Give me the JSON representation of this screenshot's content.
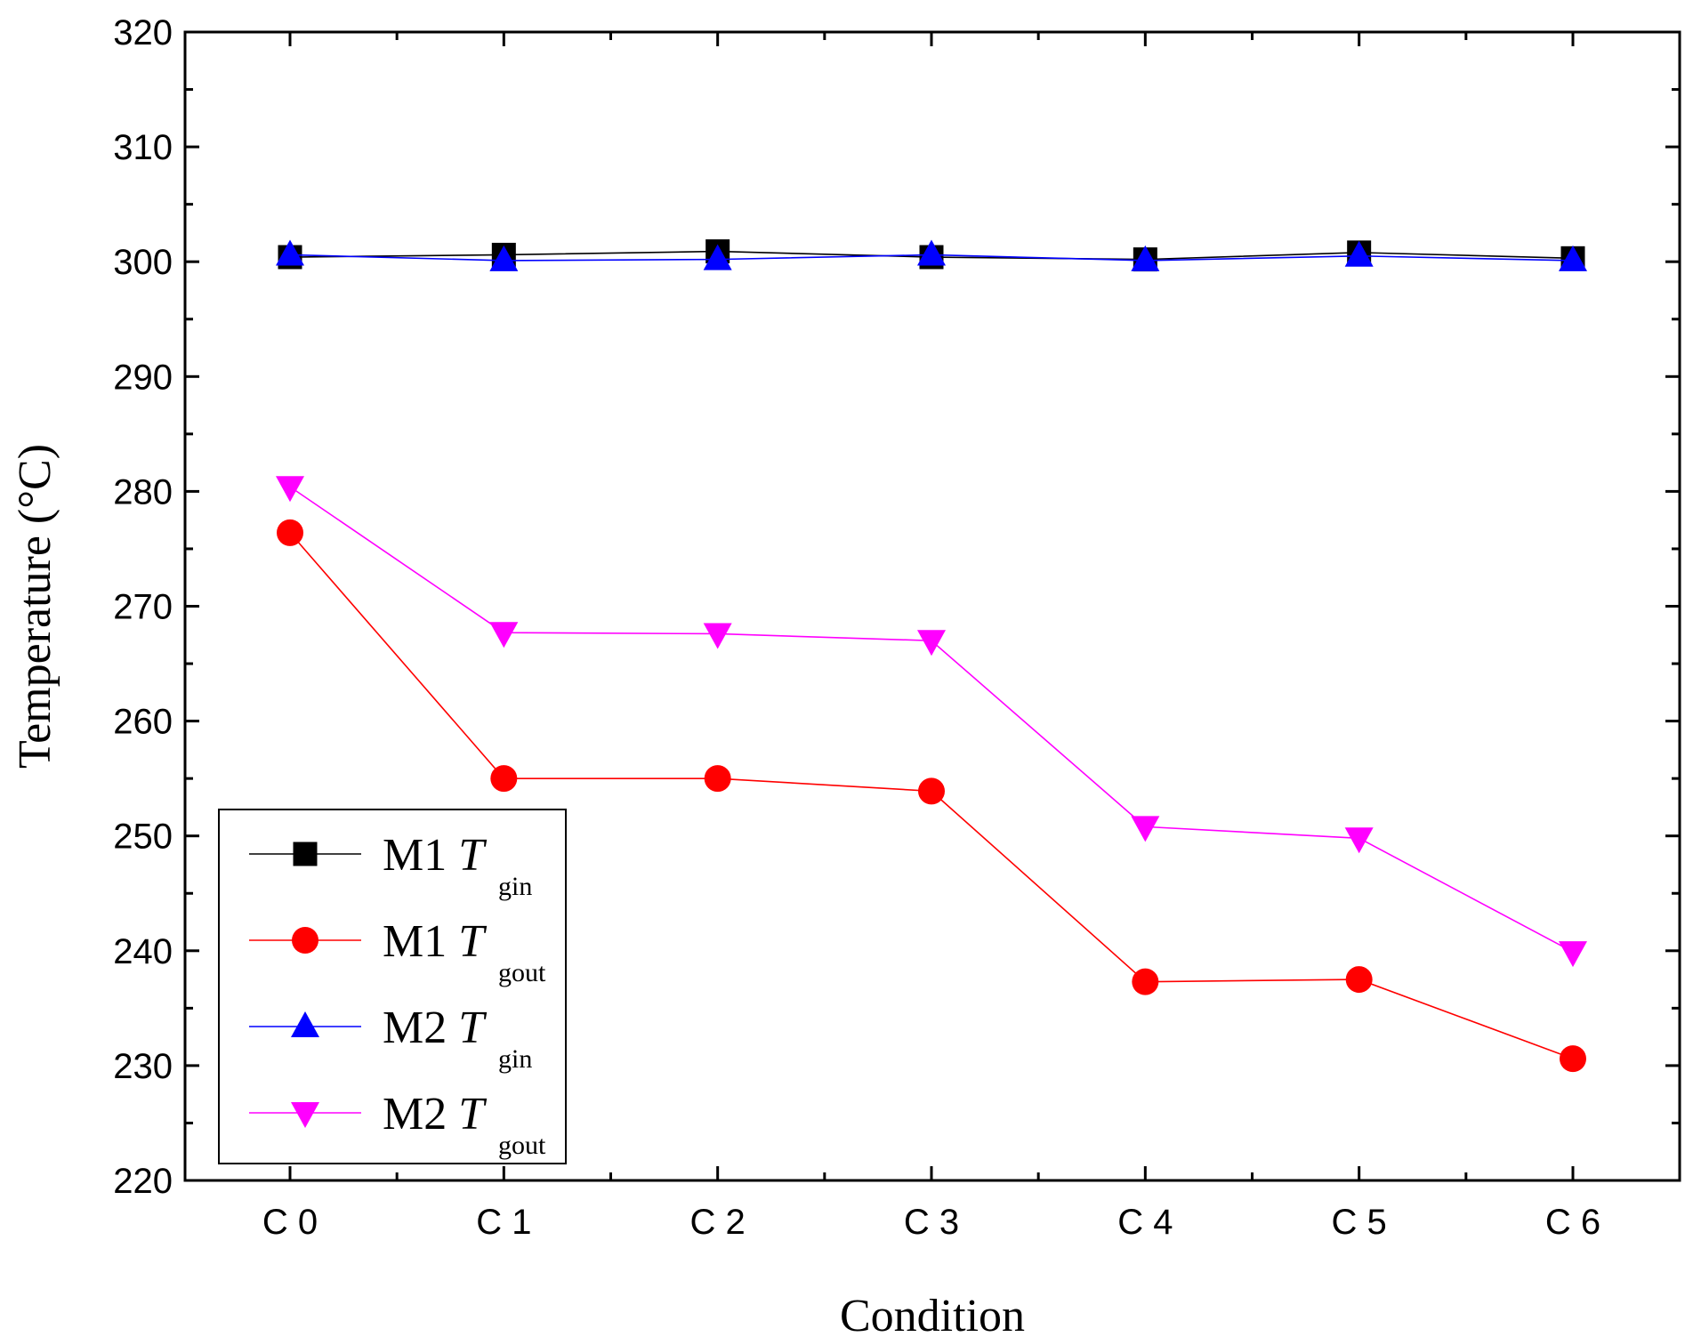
{
  "chart_data": {
    "type": "line",
    "xlabel": "Condition",
    "ylabel": "Temperature (°C)",
    "ylim": [
      220,
      320
    ],
    "y_ticks": [
      220,
      230,
      240,
      250,
      260,
      270,
      280,
      290,
      300,
      310,
      320
    ],
    "categories": [
      "C 0",
      "C 1",
      "C 2",
      "C 3",
      "C 4",
      "C 5",
      "C 6"
    ],
    "grid": false,
    "legend_position": "bottom-left",
    "series": [
      {
        "name": "M1 T",
        "name_main": "M1 ",
        "name_italic": "T",
        "name_sub": "gin",
        "color": "#000000",
        "marker": "square",
        "values": [
          300.4,
          300.6,
          300.9,
          300.4,
          300.2,
          300.8,
          300.3
        ]
      },
      {
        "name": "M1 T",
        "name_main": "M1 ",
        "name_italic": "T",
        "name_sub": "gout",
        "color": "#ff0000",
        "marker": "circle",
        "values": [
          276.4,
          255.0,
          255.0,
          253.9,
          237.3,
          237.5,
          230.6
        ]
      },
      {
        "name": "M2 T",
        "name_main": "M2 ",
        "name_italic": "T",
        "name_sub": "gin",
        "color": "#0000ff",
        "marker": "triangle-up",
        "values": [
          300.6,
          300.1,
          300.2,
          300.6,
          300.1,
          300.5,
          300.1
        ]
      },
      {
        "name": "M2 T",
        "name_main": "M2 ",
        "name_italic": "T",
        "name_sub": "gout",
        "color": "#ff00ff",
        "marker": "triangle-down",
        "values": [
          280.4,
          267.7,
          267.6,
          267.0,
          250.8,
          249.8,
          239.9
        ]
      }
    ]
  }
}
